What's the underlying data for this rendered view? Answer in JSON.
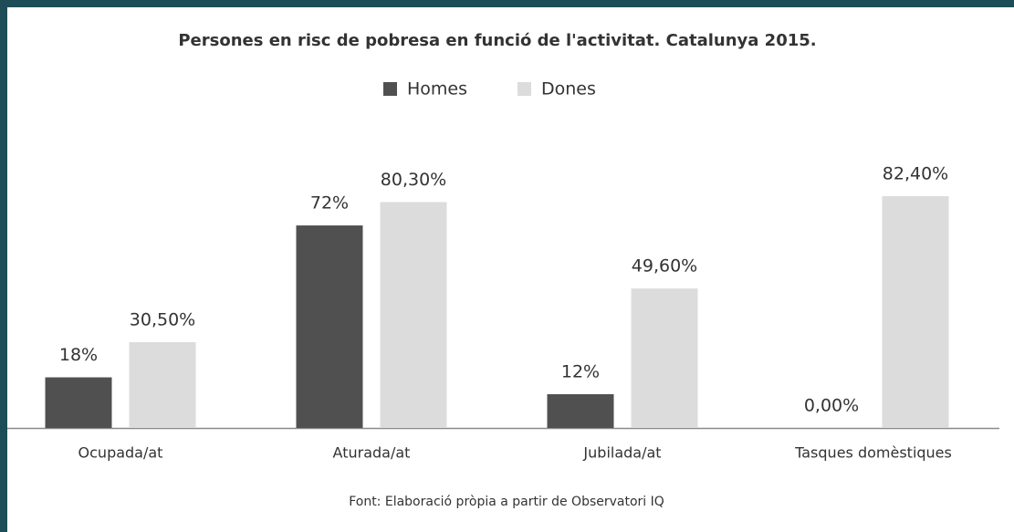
{
  "chart_data": {
    "type": "bar",
    "title": "Persones en risc de pobresa en funció de l'activitat. Catalunya 2015.",
    "source": "Font: Elaboració pròpia a partir de Observatori IQ",
    "categories": [
      "Ocupada/at",
      "Aturada/at",
      "Jubilada/at",
      "Tasques domèstiques"
    ],
    "series": [
      {
        "name": "Homes",
        "color": "#505050",
        "values": [
          18,
          72,
          12,
          0
        ],
        "value_labels": [
          "18%",
          "72%",
          "12%",
          "0,00%"
        ]
      },
      {
        "name": "Dones",
        "color": "#dcdcdc",
        "values": [
          30.5,
          80.3,
          49.6,
          82.4
        ],
        "value_labels": [
          "30,50%",
          "80,30%",
          "49,60%",
          "82,40%"
        ]
      }
    ],
    "legend": "top"
  }
}
